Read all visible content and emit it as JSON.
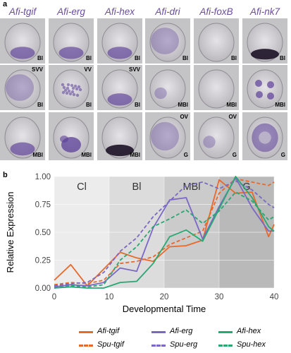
{
  "panel_a": {
    "letter": "a",
    "columns": [
      "Afi-tgif",
      "Afi-erg",
      "Afi-hex",
      "Afi-dri",
      "Afi-foxB",
      "Afi-nk7"
    ],
    "rows": [
      [
        "Bl",
        "Bl",
        "Bl",
        "Bl",
        "Bl",
        "Bl"
      ],
      [
        "Bl",
        "Bl",
        "Bl",
        "MBl",
        "MBl",
        "MBl"
      ],
      [
        "MBl",
        "MBl",
        "MBl",
        "G",
        "G",
        "G"
      ]
    ],
    "top_labels": [
      [
        "",
        "",
        "",
        "",
        "",
        ""
      ],
      [
        "SVV",
        "VV",
        "SVV",
        "",
        "",
        ""
      ],
      [
        "",
        "",
        "",
        "OV",
        "OV",
        ""
      ]
    ]
  },
  "panel_b": {
    "letter": "b",
    "stage_labels": [
      "Cl",
      "Bl",
      "MBl",
      "G"
    ]
  },
  "chart_data": {
    "type": "line",
    "xlabel": "Developmental Time",
    "ylabel": "Relative Expression",
    "xlim": [
      0,
      40
    ],
    "ylim": [
      0,
      1.0
    ],
    "xticks": [
      "0",
      "10",
      "20",
      "30",
      "40"
    ],
    "yticks": [
      "0.00",
      "0.25",
      "0.50",
      "0.75",
      "1.00"
    ],
    "stages": [
      {
        "label": "Cl",
        "from": 0,
        "to": 10,
        "color": "#ececec"
      },
      {
        "label": "Bl",
        "from": 10,
        "to": 20,
        "color": "#dcdcdc"
      },
      {
        "label": "MBl",
        "from": 20,
        "to": 30,
        "color": "#cbcbcb"
      },
      {
        "label": "G",
        "from": 30,
        "to": 40,
        "color": "#b9b9b9"
      }
    ],
    "series": [
      {
        "name": "Afi-tgif",
        "color": "#e8692b",
        "dash": "solid",
        "x": [
          0,
          3,
          6,
          9,
          12,
          15,
          18,
          21,
          24,
          27,
          30,
          33,
          36,
          39,
          40
        ],
        "y": [
          0.07,
          0.21,
          0.02,
          0.17,
          0.32,
          0.27,
          0.24,
          0.37,
          0.38,
          0.43,
          0.97,
          0.85,
          0.86,
          0.46,
          0.57
        ]
      },
      {
        "name": "Spu-tgif",
        "color": "#e8692b",
        "dash": "dashed",
        "x": [
          0,
          3,
          6,
          9,
          12,
          15,
          18,
          21,
          24,
          27,
          30,
          33,
          36,
          39,
          40
        ],
        "y": [
          0.03,
          0.05,
          0.04,
          0.07,
          0.22,
          0.24,
          0.28,
          0.39,
          0.45,
          0.51,
          0.85,
          0.98,
          0.95,
          0.92,
          0.95
        ]
      },
      {
        "name": "Afi-erg",
        "color": "#7b68c4",
        "dash": "solid",
        "x": [
          0,
          3,
          6,
          9,
          12,
          15,
          18,
          21,
          24,
          27,
          30,
          33,
          36,
          39,
          40
        ],
        "y": [
          0.01,
          0.03,
          0.02,
          0.05,
          0.18,
          0.15,
          0.54,
          0.79,
          0.81,
          0.44,
          0.73,
          0.99,
          0.72,
          0.51,
          0.51
        ]
      },
      {
        "name": "Spu-erg",
        "color": "#7b68c4",
        "dash": "dashed",
        "x": [
          0,
          3,
          6,
          9,
          12,
          15,
          18,
          21,
          24,
          27,
          30,
          33,
          36,
          39,
          40
        ],
        "y": [
          0.02,
          0.04,
          0.05,
          0.14,
          0.33,
          0.45,
          0.64,
          0.78,
          0.92,
          0.95,
          0.89,
          0.96,
          0.88,
          0.75,
          0.72
        ]
      },
      {
        "name": "Afi-hex",
        "color": "#28a872",
        "dash": "solid",
        "x": [
          0,
          3,
          6,
          9,
          12,
          15,
          18,
          21,
          24,
          27,
          30,
          33,
          36,
          39,
          40
        ],
        "y": [
          0.0,
          0.01,
          0.0,
          0.0,
          0.05,
          0.06,
          0.22,
          0.46,
          0.52,
          0.42,
          0.71,
          1.0,
          0.81,
          0.55,
          0.51
        ]
      },
      {
        "name": "Spu-hex",
        "color": "#28a872",
        "dash": "dashed",
        "x": [
          0,
          3,
          6,
          9,
          12,
          15,
          18,
          21,
          24,
          27,
          30,
          33,
          36,
          39,
          40
        ],
        "y": [
          0.0,
          0.02,
          0.01,
          0.03,
          0.25,
          0.37,
          0.55,
          0.62,
          0.7,
          0.58,
          0.69,
          0.86,
          0.78,
          0.61,
          0.64
        ]
      }
    ]
  }
}
